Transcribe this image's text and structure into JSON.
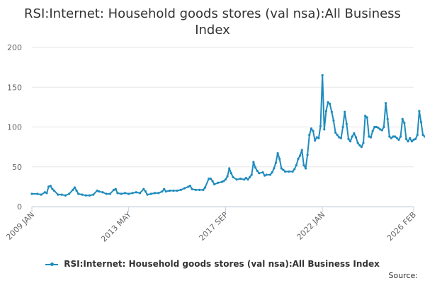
{
  "chart_data": {
    "type": "line",
    "title_lines": [
      "RSI:Internet: Household goods stores (val nsa):All Business",
      "Index"
    ],
    "xlabel": "",
    "ylabel": "",
    "ylim": [
      0,
      200
    ],
    "y_ticks": [
      0,
      50,
      100,
      150,
      200
    ],
    "x_ticks": [
      {
        "label": "2009 JAN",
        "pos": 0
      },
      {
        "label": "2013 MAY",
        "pos": 52
      },
      {
        "label": "2017 SEP",
        "pos": 104
      },
      {
        "label": "2022 JAN",
        "pos": 156
      },
      {
        "label": "2026 FEB",
        "pos": 205
      }
    ],
    "x_range": [
      0,
      205
    ],
    "grid": true,
    "legend_position": "bottom",
    "series": [
      {
        "name": "RSI:Internet: Household goods stores (val nsa):All Business Index",
        "color": "#1f8bbd",
        "points": [
          [
            0,
            16
          ],
          [
            3,
            16
          ],
          [
            5,
            15
          ],
          [
            7,
            18
          ],
          [
            8,
            17
          ],
          [
            9,
            25
          ],
          [
            10,
            26
          ],
          [
            11,
            22
          ],
          [
            12,
            20
          ],
          [
            14,
            15
          ],
          [
            16,
            15
          ],
          [
            18,
            14
          ],
          [
            20,
            16
          ],
          [
            22,
            21
          ],
          [
            23,
            24
          ],
          [
            24,
            20
          ],
          [
            25,
            16
          ],
          [
            27,
            15
          ],
          [
            29,
            14
          ],
          [
            31,
            14
          ],
          [
            33,
            15
          ],
          [
            35,
            20
          ],
          [
            36,
            19
          ],
          [
            38,
            18
          ],
          [
            40,
            16
          ],
          [
            42,
            16
          ],
          [
            44,
            21
          ],
          [
            45,
            22
          ],
          [
            46,
            17
          ],
          [
            48,
            16
          ],
          [
            50,
            17
          ],
          [
            52,
            16
          ],
          [
            54,
            17
          ],
          [
            56,
            18
          ],
          [
            58,
            17
          ],
          [
            60,
            22
          ],
          [
            61,
            19
          ],
          [
            62,
            15
          ],
          [
            64,
            16
          ],
          [
            66,
            17
          ],
          [
            68,
            17
          ],
          [
            70,
            19
          ],
          [
            71,
            22
          ],
          [
            72,
            19
          ],
          [
            74,
            20
          ],
          [
            76,
            20
          ],
          [
            78,
            20
          ],
          [
            80,
            21
          ],
          [
            82,
            23
          ],
          [
            84,
            25
          ],
          [
            85,
            26
          ],
          [
            86,
            22
          ],
          [
            88,
            21
          ],
          [
            90,
            21
          ],
          [
            92,
            21
          ],
          [
            93,
            24
          ],
          [
            95,
            35
          ],
          [
            96,
            35
          ],
          [
            97,
            32
          ],
          [
            98,
            28
          ],
          [
            100,
            30
          ],
          [
            102,
            31
          ],
          [
            103,
            32
          ],
          [
            104,
            34
          ],
          [
            105,
            38
          ],
          [
            106,
            48
          ],
          [
            107,
            42
          ],
          [
            108,
            37
          ],
          [
            110,
            34
          ],
          [
            112,
            35
          ],
          [
            114,
            34
          ],
          [
            115,
            36
          ],
          [
            116,
            34
          ],
          [
            117,
            37
          ],
          [
            118,
            40
          ],
          [
            119,
            56
          ],
          [
            120,
            49
          ],
          [
            121,
            45
          ],
          [
            122,
            42
          ],
          [
            124,
            43
          ],
          [
            125,
            39
          ],
          [
            126,
            40
          ],
          [
            128,
            40
          ],
          [
            129,
            43
          ],
          [
            130,
            48
          ],
          [
            131,
            55
          ],
          [
            132,
            67
          ],
          [
            133,
            60
          ],
          [
            134,
            48
          ],
          [
            135,
            46
          ],
          [
            136,
            44
          ],
          [
            138,
            44
          ],
          [
            140,
            44
          ],
          [
            141,
            47
          ],
          [
            142,
            52
          ],
          [
            143,
            60
          ],
          [
            144,
            64
          ],
          [
            145,
            71
          ],
          [
            146,
            52
          ],
          [
            147,
            48
          ],
          [
            148,
            65
          ],
          [
            149,
            90
          ],
          [
            150,
            98
          ],
          [
            151,
            95
          ],
          [
            152,
            83
          ],
          [
            153,
            87
          ],
          [
            154,
            86
          ],
          [
            155,
            101
          ],
          [
            156,
            165
          ],
          [
            157,
            97
          ],
          [
            158,
            120
          ],
          [
            159,
            131
          ],
          [
            160,
            129
          ],
          [
            161,
            119
          ],
          [
            162,
            108
          ],
          [
            163,
            93
          ],
          [
            164,
            90
          ],
          [
            165,
            87
          ],
          [
            166,
            86
          ],
          [
            167,
            100
          ],
          [
            168,
            119
          ],
          [
            169,
            104
          ],
          [
            170,
            85
          ],
          [
            171,
            82
          ],
          [
            172,
            88
          ],
          [
            173,
            92
          ],
          [
            174,
            87
          ],
          [
            175,
            80
          ],
          [
            176,
            77
          ],
          [
            177,
            75
          ],
          [
            178,
            80
          ],
          [
            179,
            114
          ],
          [
            180,
            112
          ],
          [
            181,
            88
          ],
          [
            182,
            87
          ],
          [
            183,
            95
          ],
          [
            184,
            100
          ],
          [
            185,
            100
          ],
          [
            186,
            99
          ],
          [
            187,
            97
          ],
          [
            188,
            96
          ],
          [
            189,
            100
          ],
          [
            190,
            130
          ],
          [
            191,
            110
          ],
          [
            192,
            88
          ],
          [
            193,
            86
          ],
          [
            194,
            88
          ],
          [
            195,
            88
          ],
          [
            196,
            86
          ],
          [
            197,
            84
          ],
          [
            198,
            88
          ],
          [
            199,
            110
          ],
          [
            200,
            105
          ],
          [
            201,
            85
          ],
          [
            202,
            82
          ],
          [
            203,
            86
          ],
          [
            204,
            82
          ],
          [
            205,
            84
          ],
          [
            206,
            85
          ],
          [
            207,
            90
          ],
          [
            208,
            120
          ],
          [
            209,
            106
          ],
          [
            210,
            90
          ],
          [
            211,
            88
          ]
        ]
      }
    ]
  },
  "source_label": "Source:"
}
